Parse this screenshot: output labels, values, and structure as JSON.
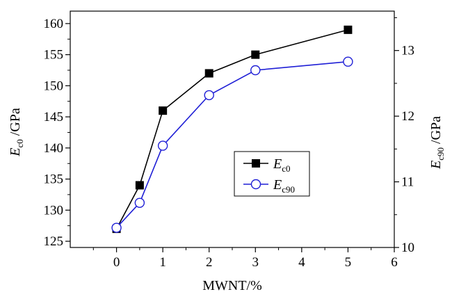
{
  "chart_data": {
    "type": "line",
    "xlabel": "MWNT/%",
    "ylabel_left": {
      "symbol": "E",
      "subscript": "c0",
      "unit": " /GPa"
    },
    "ylabel_right": {
      "symbol": "E",
      "subscript": "c90",
      "unit": " /GPa"
    },
    "xlim": [
      -1,
      6
    ],
    "ylim_left": [
      124,
      162
    ],
    "ylim_right": [
      10,
      13.6
    ],
    "x_ticks": [
      0,
      1,
      2,
      3,
      4,
      5,
      6
    ],
    "y_ticks_left": [
      125,
      130,
      135,
      140,
      145,
      150,
      155,
      160
    ],
    "y_ticks_right": [
      10,
      11,
      12,
      13
    ],
    "grid": false,
    "legend_position": "center-right",
    "series": [
      {
        "name": "E_c0",
        "name_symbol": "E",
        "name_subscript": "c0",
        "axis": "left",
        "color": "#000000",
        "marker": "filled-square",
        "x": [
          0,
          0.5,
          1,
          2,
          3,
          5
        ],
        "y": [
          127,
          134,
          146,
          152,
          155,
          159
        ]
      },
      {
        "name": "E_c90",
        "name_symbol": "E",
        "name_subscript": "c90",
        "axis": "right",
        "color": "#1f1fd6",
        "marker": "open-circle",
        "x": [
          0,
          0.5,
          1,
          2,
          3,
          5
        ],
        "y": [
          10.3,
          10.68,
          11.55,
          12.32,
          12.7,
          12.83
        ]
      }
    ]
  }
}
